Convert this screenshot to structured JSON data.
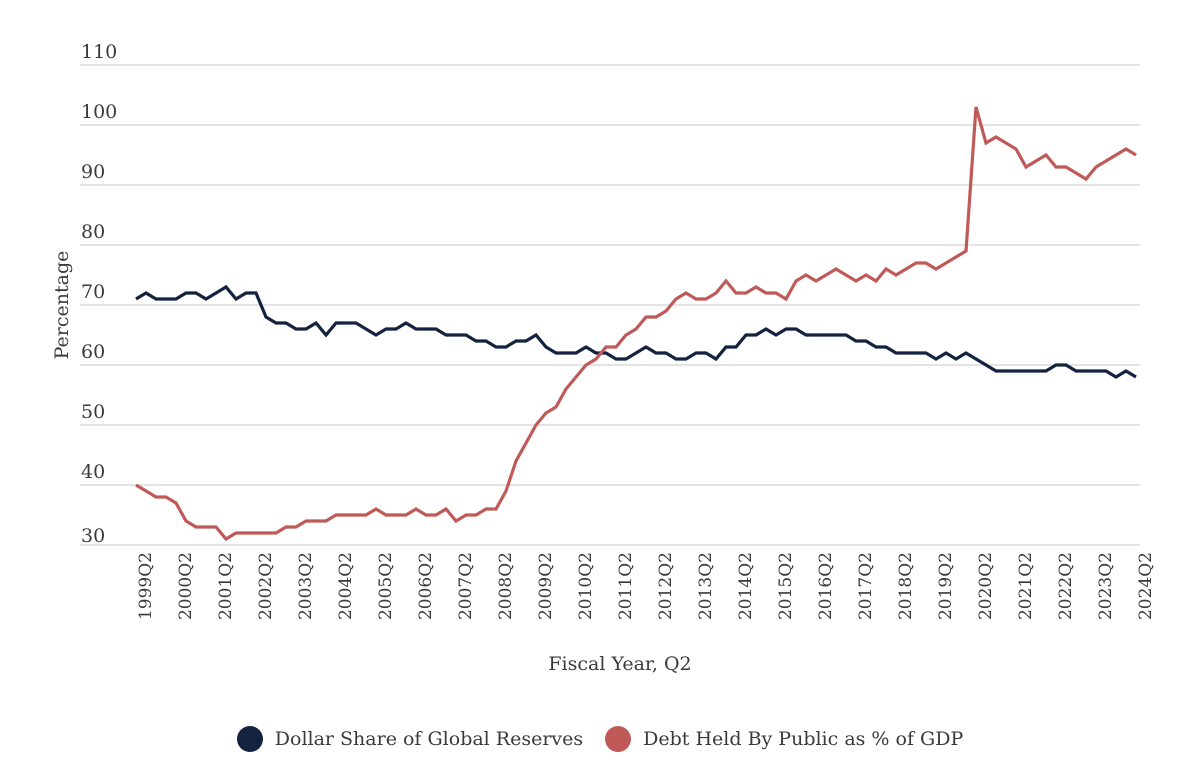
{
  "chart_data": {
    "type": "line",
    "title": "",
    "xlabel": "Fiscal Year, Q2",
    "ylabel": "Percentage",
    "ylim": [
      30,
      110
    ],
    "yticks": [
      30,
      40,
      50,
      60,
      70,
      80,
      90,
      100,
      110
    ],
    "grid": true,
    "legend_position": "bottom",
    "x_start": "1999Q2",
    "x_end": "2024Q2",
    "x_frequency": "quarterly",
    "xtick_labels": [
      "1999Q2",
      "2000Q2",
      "2001Q2",
      "2002Q2",
      "2003Q2",
      "2004Q2",
      "2005Q2",
      "2006Q2",
      "2007Q2",
      "2008Q2",
      "2009Q2",
      "2010Q2",
      "2011Q2",
      "2012Q2",
      "2013Q2",
      "2014Q2",
      "2015Q2",
      "2016Q2",
      "2017Q2",
      "2018Q2",
      "2019Q2",
      "2020Q2",
      "2021Q2",
      "2022Q2",
      "2023Q2",
      "2024Q2"
    ],
    "series": [
      {
        "name": "Dollar Share of Global Reserves",
        "color": "#13223f",
        "values": [
          71,
          72,
          71,
          71,
          71,
          72,
          72,
          71,
          72,
          73,
          71,
          72,
          72,
          68,
          67,
          67,
          66,
          66,
          67,
          65,
          67,
          67,
          67,
          66,
          65,
          66,
          66,
          67,
          66,
          66,
          66,
          65,
          65,
          65,
          64,
          64,
          63,
          63,
          64,
          64,
          65,
          63,
          62,
          62,
          62,
          63,
          62,
          62,
          61,
          61,
          62,
          63,
          62,
          62,
          61,
          61,
          62,
          62,
          61,
          63,
          63,
          65,
          65,
          66,
          65,
          66,
          66,
          65,
          65,
          65,
          65,
          65,
          64,
          64,
          63,
          63,
          62,
          62,
          62,
          62,
          61,
          62,
          61,
          62,
          61,
          60,
          59,
          59,
          59,
          59,
          59,
          59,
          60,
          60,
          59,
          59,
          59,
          59,
          58,
          59,
          58
        ]
      },
      {
        "name": "Debt Held By Public as % of GDP",
        "color": "#bf5a58",
        "values": [
          40,
          39,
          38,
          38,
          37,
          34,
          33,
          33,
          33,
          31,
          32,
          32,
          32,
          32,
          32,
          33,
          33,
          34,
          34,
          34,
          35,
          35,
          35,
          35,
          36,
          35,
          35,
          35,
          36,
          35,
          35,
          36,
          34,
          35,
          35,
          36,
          36,
          39,
          44,
          47,
          50,
          52,
          53,
          56,
          58,
          60,
          61,
          63,
          63,
          65,
          66,
          68,
          68,
          69,
          71,
          72,
          71,
          71,
          72,
          74,
          72,
          72,
          73,
          72,
          72,
          71,
          74,
          75,
          74,
          75,
          76,
          75,
          74,
          75,
          74,
          76,
          75,
          76,
          77,
          77,
          76,
          77,
          78,
          79,
          103,
          97,
          98,
          97,
          96,
          93,
          94,
          95,
          93,
          93,
          92,
          91,
          93,
          94,
          95,
          96,
          95
        ]
      }
    ]
  }
}
